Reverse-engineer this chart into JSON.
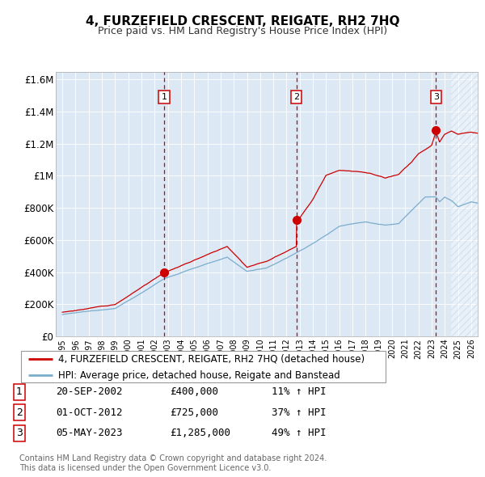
{
  "title": "4, FURZEFIELD CRESCENT, REIGATE, RH2 7HQ",
  "subtitle": "Price paid vs. HM Land Registry's House Price Index (HPI)",
  "footer_line1": "Contains HM Land Registry data © Crown copyright and database right 2024.",
  "footer_line2": "This data is licensed under the Open Government Licence v3.0.",
  "legend_red": "4, FURZEFIELD CRESCENT, REIGATE, RH2 7HQ (detached house)",
  "legend_blue": "HPI: Average price, detached house, Reigate and Banstead",
  "table": [
    {
      "num": "1",
      "date": "20-SEP-2002",
      "price": "£400,000",
      "hpi": "11% ↑ HPI"
    },
    {
      "num": "2",
      "date": "01-OCT-2012",
      "price": "£725,000",
      "hpi": "37% ↑ HPI"
    },
    {
      "num": "3",
      "date": "05-MAY-2023",
      "price": "£1,285,000",
      "hpi": "49% ↑ HPI"
    }
  ],
  "sale_years": [
    2002.72,
    2012.75,
    2023.34
  ],
  "sale_prices": [
    400000,
    725000,
    1285000
  ],
  "ylim": [
    0,
    1650000
  ],
  "yticks": [
    0,
    200000,
    400000,
    600000,
    800000,
    1000000,
    1200000,
    1400000,
    1600000
  ],
  "ytick_labels": [
    "£0",
    "£200K",
    "£400K",
    "£600K",
    "£800K",
    "£1M",
    "£1.2M",
    "£1.4M",
    "£1.6M"
  ],
  "xmin": 1994.5,
  "xmax": 2026.5,
  "plot_bg": "#dde8f5",
  "hatch_color": "#b8c8dc",
  "red_color": "#cc0000",
  "blue_color": "#7aadcc",
  "dashed_color": "#cc0000",
  "marker_color": "#cc0000",
  "grid_color": "#ffffff",
  "hatch_start": 2024.5
}
